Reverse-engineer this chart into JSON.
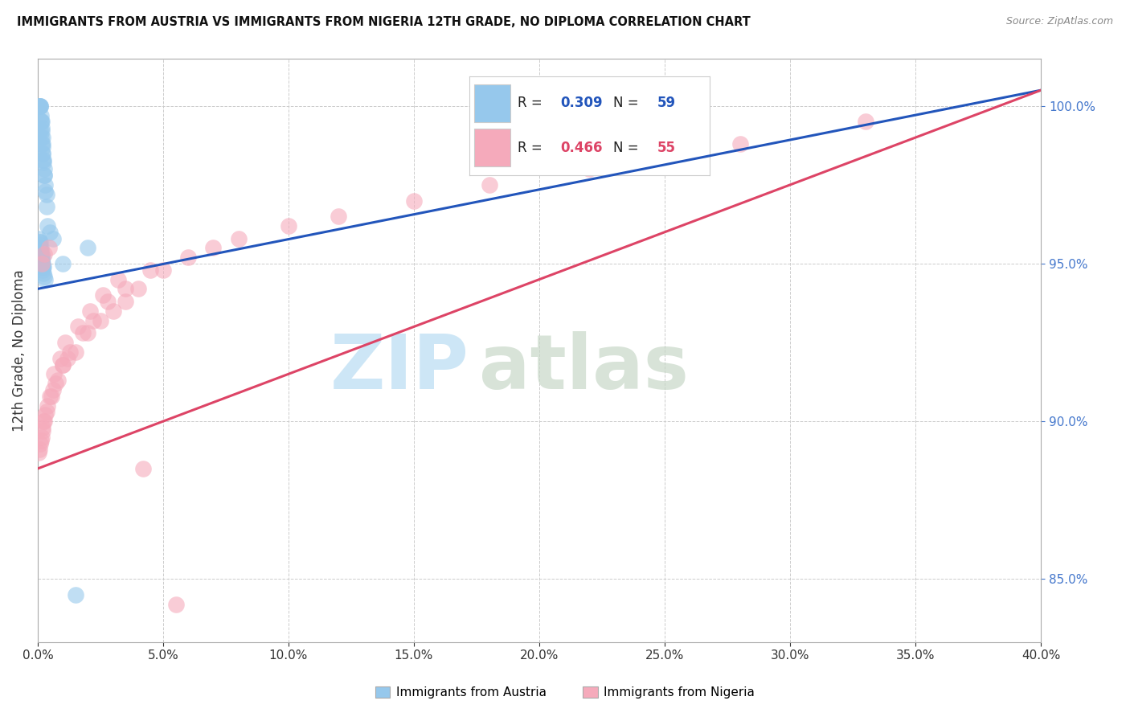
{
  "title": "IMMIGRANTS FROM AUSTRIA VS IMMIGRANTS FROM NIGERIA 12TH GRADE, NO DIPLOMA CORRELATION CHART",
  "source": "Source: ZipAtlas.com",
  "xmin": 0.0,
  "xmax": 40.0,
  "ymin": 83.0,
  "ymax": 101.5,
  "yticks": [
    85.0,
    90.0,
    95.0,
    100.0
  ],
  "xticks": [
    0.0,
    5.0,
    10.0,
    15.0,
    20.0,
    25.0,
    30.0,
    35.0,
    40.0
  ],
  "austria_color": "#96C8EC",
  "nigeria_color": "#F5AABB",
  "austria_line_color": "#2255BB",
  "nigeria_line_color": "#DD4466",
  "r_austria": "0.309",
  "n_austria": "59",
  "r_nigeria": "0.466",
  "n_nigeria": "55",
  "ylabel": "12th Grade, No Diploma",
  "bottom_label_austria": "Immigrants from Austria",
  "bottom_label_nigeria": "Immigrants from Nigeria",
  "austria_trend_x": [
    0.0,
    40.0
  ],
  "austria_trend_y": [
    94.2,
    100.5
  ],
  "nigeria_trend_x": [
    0.0,
    40.0
  ],
  "nigeria_trend_y": [
    88.5,
    100.5
  ],
  "austria_x": [
    0.05,
    0.08,
    0.09,
    0.1,
    0.11,
    0.12,
    0.13,
    0.14,
    0.15,
    0.16,
    0.17,
    0.18,
    0.19,
    0.2,
    0.21,
    0.22,
    0.23,
    0.25,
    0.27,
    0.3,
    0.35,
    0.1,
    0.12,
    0.14,
    0.15,
    0.16,
    0.18,
    0.2,
    0.22,
    0.25,
    0.3,
    0.1,
    0.12,
    0.14,
    0.16,
    0.18,
    0.2,
    0.22,
    0.05,
    0.07,
    0.08,
    0.09,
    0.1,
    0.11,
    0.12,
    0.1,
    0.13,
    0.15,
    0.18,
    0.2,
    0.25,
    0.3,
    0.35,
    1.0,
    1.5,
    2.0,
    0.4,
    0.5,
    0.6
  ],
  "austria_y": [
    100.0,
    100.0,
    100.0,
    100.0,
    100.0,
    99.7,
    99.5,
    99.5,
    99.5,
    99.3,
    99.2,
    99.0,
    98.8,
    98.7,
    98.5,
    98.3,
    98.2,
    98.0,
    97.8,
    97.5,
    97.2,
    95.3,
    95.2,
    95.0,
    95.1,
    95.0,
    94.9,
    94.8,
    94.7,
    94.6,
    94.5,
    95.7,
    95.5,
    95.4,
    95.3,
    95.2,
    95.0,
    94.9,
    95.8,
    95.7,
    95.6,
    95.5,
    95.4,
    95.3,
    95.2,
    99.2,
    99.0,
    98.8,
    98.5,
    98.3,
    97.8,
    97.3,
    96.8,
    95.0,
    84.5,
    95.5,
    96.2,
    96.0,
    95.8
  ],
  "nigeria_x": [
    0.05,
    0.1,
    0.15,
    0.2,
    0.25,
    0.3,
    0.4,
    0.5,
    0.6,
    0.8,
    1.0,
    1.2,
    1.5,
    2.0,
    2.5,
    3.0,
    3.5,
    4.0,
    5.0,
    6.0,
    7.0,
    8.0,
    10.0,
    12.0,
    15.0,
    18.0,
    22.0,
    28.0,
    33.0,
    0.08,
    0.12,
    0.18,
    0.22,
    0.35,
    0.55,
    0.7,
    1.0,
    1.3,
    1.8,
    2.2,
    2.8,
    3.5,
    4.5,
    0.15,
    0.25,
    0.45,
    0.65,
    0.9,
    1.1,
    1.6,
    2.1,
    2.6,
    3.2,
    4.2,
    5.5
  ],
  "nigeria_y": [
    89.0,
    89.3,
    89.5,
    89.8,
    90.0,
    90.2,
    90.5,
    90.8,
    91.0,
    91.3,
    91.8,
    92.0,
    92.2,
    92.8,
    93.2,
    93.5,
    93.8,
    94.2,
    94.8,
    95.2,
    95.5,
    95.8,
    96.2,
    96.5,
    97.0,
    97.5,
    98.0,
    98.8,
    99.5,
    89.1,
    89.4,
    89.7,
    90.0,
    90.3,
    90.8,
    91.2,
    91.8,
    92.2,
    92.8,
    93.2,
    93.8,
    94.2,
    94.8,
    95.0,
    95.3,
    95.5,
    91.5,
    92.0,
    92.5,
    93.0,
    93.5,
    94.0,
    94.5,
    88.5,
    84.2
  ]
}
